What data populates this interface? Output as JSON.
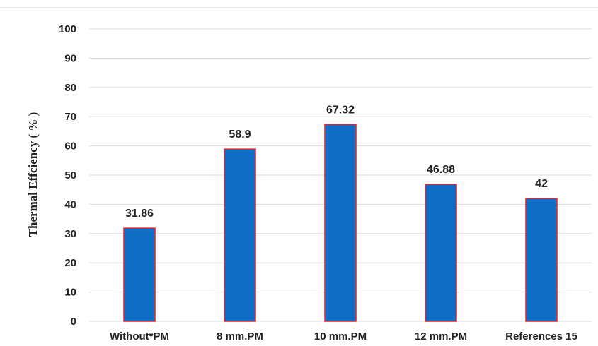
{
  "chart_data": {
    "type": "bar",
    "title": "",
    "xlabel": "",
    "ylabel": "Thermal  Effciency ( % )",
    "categories": [
      "Without*PM",
      "8 mm.PM",
      "10 mm.PM",
      "12 mm.PM",
      "References 15"
    ],
    "values": [
      31.86,
      58.9,
      67.32,
      46.88,
      42
    ],
    "data_labels": [
      "31.86",
      "58.9",
      "67.32",
      "46.88",
      "42"
    ],
    "ylim": [
      0,
      100
    ],
    "yticks": [
      0,
      10,
      20,
      30,
      40,
      50,
      60,
      70,
      80,
      90,
      100
    ],
    "ytick_labels": [
      "0",
      "10",
      "20",
      "30",
      "40",
      "50",
      "60",
      "70",
      "80",
      "90",
      "100"
    ],
    "grid": true,
    "legend": "none",
    "colors": {
      "bar_fill": "#0f6fc6",
      "bar_edge": "#e0242a",
      "grid": "#d9d9d9"
    }
  }
}
